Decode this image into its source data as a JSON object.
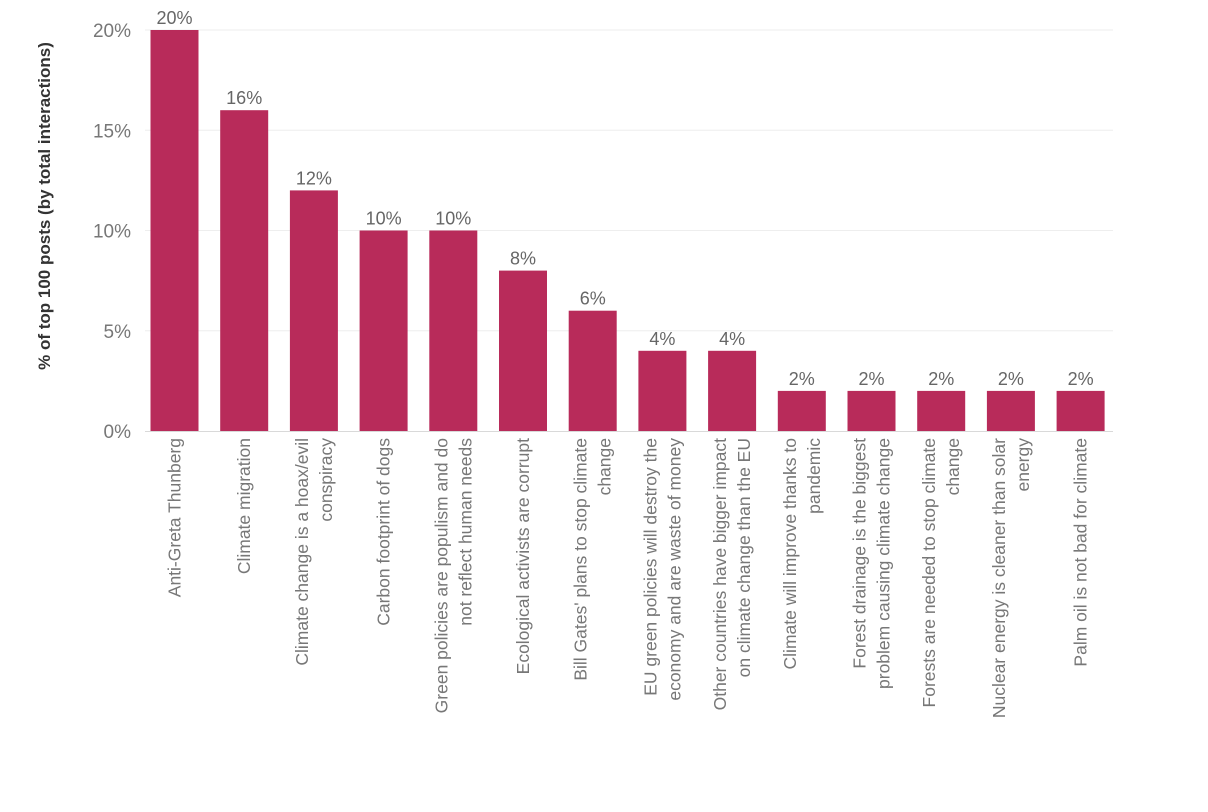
{
  "chart_data": {
    "type": "bar",
    "xlabel": "",
    "ylabel": "% of top 100 posts (by total interactions)",
    "ylim": [
      0,
      20
    ],
    "yticks": [
      "0%",
      "5%",
      "10%",
      "15%",
      "20%"
    ],
    "ytick_values": [
      0,
      5,
      10,
      15,
      20
    ],
    "grid": true,
    "bar_color": "#b82b5a",
    "categories": [
      [
        "Anti-Greta Thunberg"
      ],
      [
        "Climate migration"
      ],
      [
        "Climate change is a hoax/evil",
        "conspiracy"
      ],
      [
        "Carbon footprint of dogs"
      ],
      [
        "Green policies are populism and do",
        "not reflect human needs"
      ],
      [
        "Ecological activists are corrupt"
      ],
      [
        "Bill Gates' plans to stop climate",
        "change"
      ],
      [
        "EU green policies will destroy the",
        "economy and are waste of money"
      ],
      [
        "Other countries have bigger impact",
        "on climate change than the EU"
      ],
      [
        "Climate will improve thanks to",
        "pandemic"
      ],
      [
        "Forest drainage is the biggest",
        "problem causing climate change"
      ],
      [
        "Forests are needed to stop climate",
        "change"
      ],
      [
        "Nuclear energy is cleaner than solar",
        "energy"
      ],
      [
        "Palm oil is not bad for climate"
      ]
    ],
    "values": [
      20,
      16,
      12,
      10,
      10,
      8,
      6,
      4,
      4,
      2,
      2,
      2,
      2,
      2
    ],
    "data_labels": [
      "20%",
      "16%",
      "12%",
      "10%",
      "10%",
      "8%",
      "6%",
      "4%",
      "4%",
      "2%",
      "2%",
      "2%",
      "2%",
      "2%"
    ]
  }
}
